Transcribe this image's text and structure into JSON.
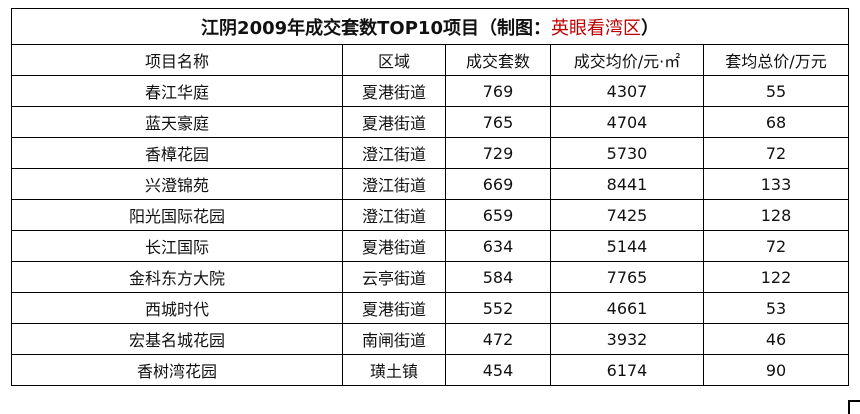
{
  "title": {
    "main": "江阴2009年成交套数TOP10项目（制图：",
    "author": "英眼看湾区",
    "close": "）"
  },
  "headers": [
    "项目名称",
    "区域",
    "成交套数",
    "成交均价/元·㎡",
    "套均总价/万元"
  ],
  "rows": [
    [
      "春江华庭",
      "夏港街道",
      "769",
      "4307",
      "55"
    ],
    [
      "蓝天豪庭",
      "夏港街道",
      "765",
      "4704",
      "68"
    ],
    [
      "香樟花园",
      "澄江街道",
      "729",
      "5730",
      "72"
    ],
    [
      "兴澄锦苑",
      "澄江街道",
      "669",
      "8441",
      "133"
    ],
    [
      "阳光国际花园",
      "澄江街道",
      "659",
      "7425",
      "128"
    ],
    [
      "长江国际",
      "夏港街道",
      "634",
      "5144",
      "72"
    ],
    [
      "金科东方大院",
      "云亭街道",
      "584",
      "7765",
      "122"
    ],
    [
      "西城时代",
      "夏港街道",
      "552",
      "4661",
      "53"
    ],
    [
      "宏基名城花园",
      "南闸街道",
      "472",
      "3932",
      "46"
    ],
    [
      "香树湾花园",
      "璜土镇",
      "454",
      "6174",
      "90"
    ]
  ],
  "colors": {
    "accent": "#c00000",
    "border": "#000000",
    "text": "#111111"
  }
}
